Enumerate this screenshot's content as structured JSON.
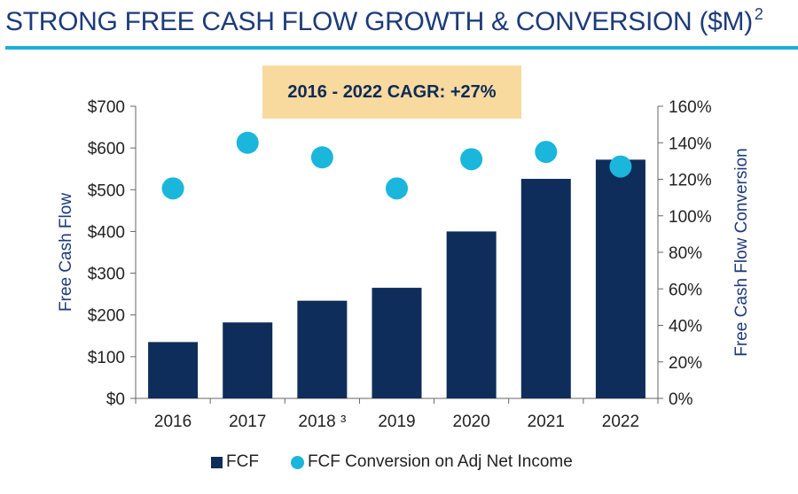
{
  "header": {
    "title": "STRONG FREE CASH FLOW GROWTH & CONVERSION ($M)",
    "title_sup": "2",
    "cagr_label": "2016 - 2022 CAGR: +27%"
  },
  "colors": {
    "title": "#1d3b7a",
    "rule": "#1bb0d6",
    "cagr_bg": "#f8d99e",
    "bar": "#0f2d5a",
    "dot": "#1ab6dc"
  },
  "chart_data": {
    "type": "bar",
    "categories": [
      "2016",
      "2017",
      "2018 ³",
      "2019",
      "2020",
      "2021",
      "2022"
    ],
    "series": [
      {
        "name": "FCF",
        "type": "bar",
        "axis": "left",
        "values": [
          135,
          182,
          234,
          265,
          400,
          526,
          572
        ]
      },
      {
        "name": "FCF Conversion on Adj Net Income",
        "type": "scatter",
        "axis": "right",
        "values": [
          115,
          140,
          132,
          115,
          131,
          135,
          127
        ]
      }
    ],
    "ylabel": "Free Cash Flow",
    "ylabel_right": "Free Cash Flow Conversion",
    "ylim": [
      0,
      700
    ],
    "ylim_right": [
      0,
      160
    ],
    "yticks": [
      "$0",
      "$100",
      "$200",
      "$300",
      "$400",
      "$500",
      "$600",
      "$700"
    ],
    "yticks_right": [
      "0%",
      "20%",
      "40%",
      "60%",
      "80%",
      "100%",
      "120%",
      "140%",
      "160%"
    ],
    "legend": {
      "position": "bottom",
      "items": [
        "FCF",
        "FCF Conversion on Adj Net Income"
      ]
    }
  }
}
